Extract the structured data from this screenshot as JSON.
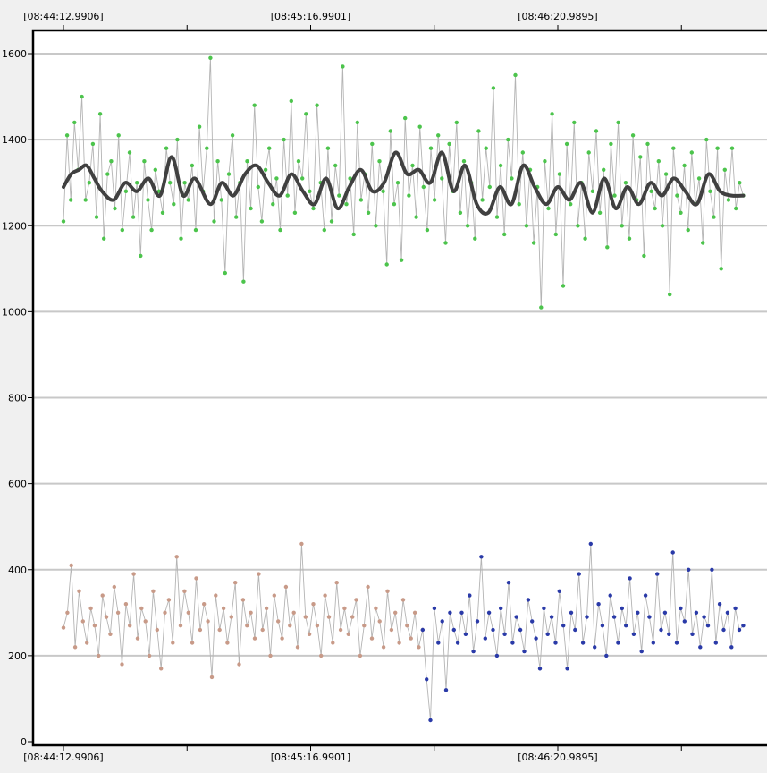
{
  "chart_data": {
    "type": "line",
    "title": "",
    "xlabel": "",
    "ylabel": "",
    "ylim": [
      0,
      1650
    ],
    "y_ticks": [
      0,
      200,
      400,
      600,
      800,
      1000,
      1200,
      1400,
      1600
    ],
    "x_tick_labels": [
      "[08:44:12.9906]",
      "[08:45:16.9901]",
      "[08:46:20.9895]"
    ],
    "x_tick_times_s": [
      0,
      64,
      128
    ],
    "xlim_s": [
      -8,
      182
    ],
    "grid": true,
    "legend": "none",
    "colors": {
      "background": "#ffffff",
      "frame": "#000000",
      "grid": "#c8c8c8",
      "raw_line": "#b4b4b4",
      "green_points": "#4cc44c",
      "tan_points": "#c89a88",
      "blue_points": "#2a3aa8",
      "smooth_line": "#404040"
    },
    "series": [
      {
        "key": "upper_raw",
        "style": "points",
        "color": "#4cc44c",
        "x_range_s": [
          0,
          176
        ],
        "values": [
          1210,
          1410,
          1260,
          1440,
          1330,
          1500,
          1260,
          1300,
          1390,
          1220,
          1460,
          1170,
          1320,
          1350,
          1240,
          1410,
          1190,
          1280,
          1370,
          1220,
          1300,
          1130,
          1350,
          1260,
          1190,
          1330,
          1280,
          1230,
          1380,
          1300,
          1250,
          1400,
          1170,
          1300,
          1260,
          1340,
          1190,
          1430,
          1280,
          1380,
          1590,
          1210,
          1350,
          1260,
          1090,
          1320,
          1410,
          1220,
          1300,
          1070,
          1350,
          1240,
          1480,
          1290,
          1210,
          1330,
          1380,
          1250,
          1310,
          1190,
          1400,
          1270,
          1490,
          1230,
          1350,
          1310,
          1460,
          1280,
          1240,
          1480,
          1300,
          1190,
          1380,
          1210,
          1340,
          1270,
          1570,
          1250,
          1310,
          1180,
          1440,
          1260,
          1320,
          1230,
          1390,
          1200,
          1350,
          1280,
          1110,
          1420,
          1250,
          1300,
          1120,
          1450,
          1270,
          1340,
          1220,
          1430,
          1290,
          1190,
          1380,
          1260,
          1410,
          1310,
          1160,
          1390,
          1280,
          1440,
          1230,
          1350,
          1200,
          1300,
          1170,
          1420,
          1260,
          1380,
          1290,
          1520,
          1220,
          1340,
          1180,
          1400,
          1310,
          1550,
          1250,
          1370,
          1200,
          1330,
          1160,
          1290,
          1010,
          1350,
          1240,
          1460,
          1180,
          1320,
          1060,
          1390,
          1250,
          1440,
          1200,
          1300,
          1170,
          1370,
          1280,
          1420,
          1230,
          1330,
          1150,
          1390,
          1270,
          1440,
          1200,
          1300,
          1170,
          1410,
          1260,
          1360,
          1130,
          1390,
          1280,
          1240,
          1350,
          1200,
          1320,
          1040,
          1380,
          1270,
          1230,
          1340,
          1190,
          1370,
          1250,
          1310,
          1160,
          1400,
          1280,
          1220,
          1380,
          1100,
          1330,
          1260,
          1380,
          1240,
          1300,
          1270
        ]
      },
      {
        "key": "upper_smooth",
        "style": "thick-line",
        "color": "#404040",
        "x": [
          0,
          2,
          4,
          6,
          8,
          10,
          13,
          16,
          19,
          22,
          25,
          28,
          31,
          34,
          38,
          41,
          44,
          47,
          50,
          53,
          56,
          59,
          62,
          65,
          68,
          71,
          74,
          77,
          80,
          83,
          86,
          89,
          92,
          95,
          98,
          101,
          104,
          107,
          110,
          113,
          116,
          119,
          122,
          125,
          128,
          131,
          134,
          137,
          140,
          143,
          146,
          149,
          152,
          155,
          158,
          161,
          164,
          167,
          170,
          173,
          176
        ],
        "values": [
          1290,
          1320,
          1330,
          1340,
          1310,
          1280,
          1260,
          1300,
          1280,
          1310,
          1270,
          1360,
          1270,
          1310,
          1250,
          1300,
          1270,
          1320,
          1340,
          1300,
          1270,
          1320,
          1280,
          1250,
          1310,
          1240,
          1290,
          1330,
          1280,
          1300,
          1370,
          1320,
          1330,
          1300,
          1370,
          1280,
          1340,
          1250,
          1230,
          1290,
          1250,
          1340,
          1290,
          1250,
          1290,
          1260,
          1300,
          1230,
          1310,
          1240,
          1290,
          1250,
          1300,
          1270,
          1310,
          1280,
          1250,
          1320,
          1280,
          1270,
          1270
        ]
      },
      {
        "key": "lower_raw_tan",
        "style": "points",
        "color": "#c89a88",
        "x_range_s": [
          0,
          93
        ],
        "values": [
          265,
          300,
          410,
          220,
          350,
          280,
          230,
          310,
          270,
          200,
          340,
          290,
          250,
          360,
          300,
          180,
          320,
          270,
          390,
          240,
          310,
          280,
          200,
          350,
          260,
          170,
          300,
          330,
          230,
          430,
          270,
          350,
          300,
          230,
          380,
          260,
          320,
          280,
          150,
          340,
          260,
          310,
          230,
          290,
          370,
          180,
          330,
          270,
          300,
          240,
          390,
          260,
          310,
          200,
          340,
          280,
          240,
          360,
          270,
          300,
          220,
          460,
          290,
          250,
          320,
          270,
          200,
          340,
          290,
          230,
          370,
          260,
          310,
          250,
          290,
          330,
          200,
          270,
          360,
          240,
          310,
          280,
          220,
          350,
          260,
          300,
          230,
          330,
          270,
          240,
          300,
          220,
          260
        ]
      },
      {
        "key": "lower_raw_blue",
        "style": "points",
        "color": "#2a3aa8",
        "x_range_s": [
          93,
          176
        ],
        "values": [
          260,
          145,
          50,
          310,
          230,
          280,
          120,
          300,
          260,
          230,
          300,
          250,
          340,
          210,
          280,
          430,
          240,
          300,
          260,
          200,
          310,
          250,
          370,
          230,
          290,
          260,
          210,
          330,
          280,
          240,
          170,
          310,
          250,
          290,
          230,
          350,
          270,
          170,
          300,
          260,
          390,
          230,
          290,
          460,
          220,
          320,
          270,
          200,
          340,
          290,
          230,
          310,
          270,
          380,
          250,
          300,
          210,
          340,
          290,
          230,
          390,
          260,
          300,
          250,
          440,
          230,
          310,
          280,
          400,
          250,
          300,
          220,
          290,
          270,
          400,
          230,
          320,
          260,
          300,
          220,
          310,
          260,
          270
        ]
      }
    ]
  }
}
